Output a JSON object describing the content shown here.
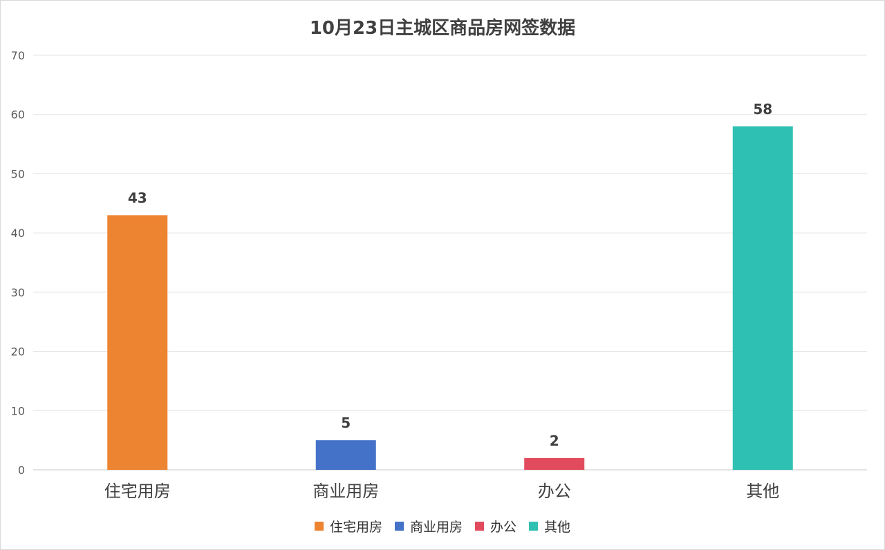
{
  "chart_data": {
    "type": "bar",
    "title": "10月23日主城区商品房网签数据",
    "categories": [
      "住宅用房",
      "商业用房",
      "办公",
      "其他"
    ],
    "values": [
      43,
      5,
      2,
      58
    ],
    "colors": [
      "#ED8432",
      "#4472C9",
      "#E24B5D",
      "#2EC0B3"
    ],
    "ylim": [
      0,
      70
    ],
    "yticks": [
      0,
      10,
      20,
      30,
      40,
      50,
      60,
      70
    ],
    "grid": true,
    "legend_position": "bottom",
    "legend": [
      "住宅用房",
      "商业用房",
      "办公",
      "其他"
    ]
  }
}
